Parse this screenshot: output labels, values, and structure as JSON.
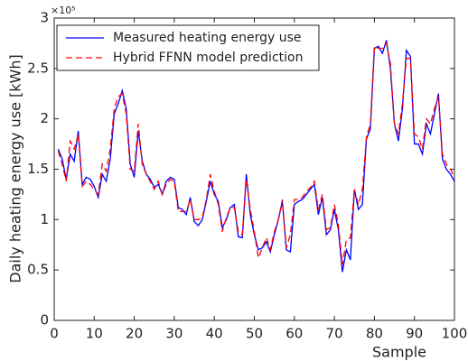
{
  "chart_data": {
    "type": "line",
    "x_label": "Sample",
    "y_label": "Daily heating energy use [kWh]",
    "y_scale_label": "×10⁵",
    "x": [
      1,
      2,
      3,
      4,
      5,
      6,
      7,
      8,
      9,
      10,
      11,
      12,
      13,
      14,
      15,
      16,
      17,
      18,
      19,
      20,
      21,
      22,
      23,
      24,
      25,
      26,
      27,
      28,
      29,
      30,
      31,
      32,
      33,
      34,
      35,
      36,
      37,
      38,
      39,
      40,
      41,
      42,
      43,
      44,
      45,
      46,
      47,
      48,
      49,
      50,
      51,
      52,
      53,
      54,
      55,
      56,
      57,
      58,
      59,
      60,
      61,
      62,
      63,
      64,
      65,
      66,
      67,
      68,
      69,
      70,
      71,
      72,
      73,
      74,
      75,
      76,
      77,
      78,
      79,
      80,
      81,
      82,
      83,
      84,
      85,
      86,
      87,
      88,
      89,
      90,
      91,
      92,
      93,
      94,
      95,
      96,
      97,
      98,
      99,
      100
    ],
    "series": [
      {
        "name": "Measured heating energy use",
        "color": "#0000ff",
        "dash": false,
        "values": [
          1.7,
          1.6,
          1.4,
          1.65,
          1.58,
          1.88,
          1.35,
          1.42,
          1.4,
          1.33,
          1.22,
          1.45,
          1.38,
          1.6,
          2.05,
          2.15,
          2.28,
          2.1,
          1.55,
          1.42,
          1.88,
          1.58,
          1.45,
          1.4,
          1.32,
          1.35,
          1.25,
          1.38,
          1.42,
          1.4,
          1.12,
          1.1,
          1.05,
          1.22,
          0.98,
          0.94,
          1.0,
          1.18,
          1.38,
          1.25,
          1.18,
          0.92,
          1.0,
          1.12,
          1.15,
          0.83,
          0.82,
          1.45,
          1.05,
          0.85,
          0.7,
          0.72,
          0.78,
          0.68,
          0.85,
          1.0,
          1.18,
          0.7,
          0.68,
          1.15,
          1.18,
          1.2,
          1.25,
          1.3,
          1.35,
          1.05,
          1.22,
          0.85,
          0.9,
          1.1,
          0.9,
          0.48,
          0.7,
          0.6,
          1.3,
          1.1,
          1.15,
          1.8,
          1.9,
          2.7,
          2.72,
          2.65,
          2.78,
          2.5,
          1.95,
          1.78,
          2.1,
          2.68,
          2.62,
          1.75,
          1.75,
          1.65,
          1.95,
          1.85,
          2.05,
          2.25,
          1.6,
          1.5,
          1.45,
          1.38
        ]
      },
      {
        "name": "Hybrid FFNN model prediction",
        "color": "#ff0000",
        "dash": true,
        "values": [
          1.68,
          1.55,
          1.38,
          1.78,
          1.7,
          1.85,
          1.33,
          1.38,
          1.35,
          1.3,
          1.25,
          1.55,
          1.48,
          1.7,
          2.1,
          2.22,
          2.25,
          2.05,
          1.5,
          1.48,
          1.95,
          1.55,
          1.45,
          1.38,
          1.3,
          1.38,
          1.25,
          1.35,
          1.4,
          1.38,
          1.08,
          1.08,
          1.08,
          1.2,
          1.0,
          1.0,
          1.02,
          1.2,
          1.45,
          1.28,
          1.15,
          0.88,
          1.02,
          1.12,
          1.12,
          0.88,
          0.85,
          1.4,
          1.1,
          0.88,
          0.62,
          0.72,
          0.82,
          0.7,
          0.88,
          1.0,
          1.2,
          0.72,
          0.85,
          1.2,
          1.2,
          1.22,
          1.28,
          1.32,
          1.38,
          1.1,
          1.25,
          0.9,
          0.92,
          1.15,
          0.95,
          0.55,
          0.8,
          0.82,
          1.3,
          1.15,
          1.3,
          1.82,
          1.95,
          2.72,
          2.7,
          2.7,
          2.75,
          2.55,
          1.95,
          1.85,
          2.15,
          2.6,
          2.6,
          1.85,
          1.82,
          1.7,
          2.0,
          1.95,
          2.1,
          2.22,
          1.65,
          1.55,
          1.5,
          1.42
        ]
      }
    ],
    "xlim": [
      0,
      100
    ],
    "xticks": [
      0,
      10,
      20,
      30,
      40,
      50,
      60,
      70,
      80,
      90,
      100
    ],
    "ylim": [
      0,
      3
    ],
    "yticks": [
      0,
      0.5,
      1,
      1.5,
      2,
      2.5,
      3
    ],
    "grid": false,
    "legend": "upper-left"
  }
}
